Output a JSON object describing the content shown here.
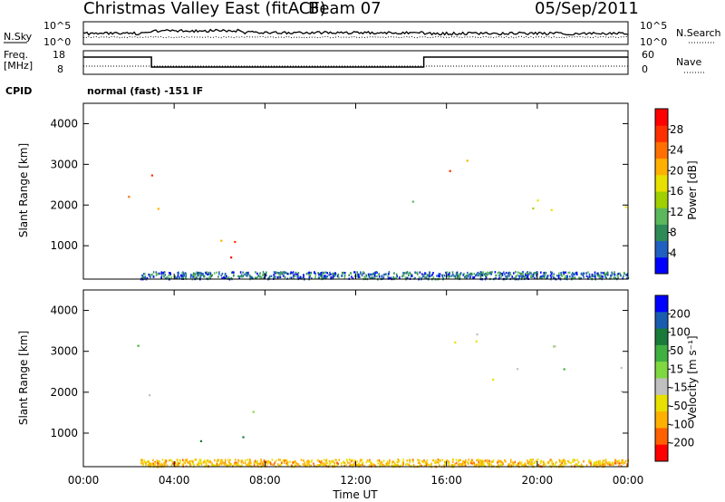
{
  "header": {
    "station": "Christmas Valley East (fitACF)",
    "beam": "Beam 07",
    "date": "05/Sep/2011"
  },
  "sky_panel": {
    "left_label": "N.Sky",
    "left_ticks": [
      "10^5",
      "10^0"
    ],
    "right_label": "N.Search",
    "right_ticks": [
      "10^5",
      "10^0"
    ]
  },
  "freq_panel": {
    "left_label_line1": "Freq.",
    "left_label_line2": "[MHz]",
    "left_ticks": [
      "18",
      "8"
    ],
    "right_label": "Nave",
    "right_ticks": [
      "60",
      "0"
    ]
  },
  "cpid": {
    "label": "CPID",
    "value": "normal (fast) -151 IF"
  },
  "colors": {
    "power": [
      "#0000ff",
      "#2060c0",
      "#2e8b57",
      "#5cb85c",
      "#a0d000",
      "#e8e000",
      "#ffb000",
      "#ff7000",
      "#ff3000",
      "#ff0000"
    ],
    "velocity": [
      "#0000ff",
      "#1a5cb0",
      "#1a7a3a",
      "#40b040",
      "#80d840",
      "#c0c0c0",
      "#e8e000",
      "#ffb000",
      "#ff6000",
      "#ff0000"
    ]
  },
  "chart_data": [
    {
      "type": "heatmap",
      "ylabel": "Slant Range [km]",
      "ylim": [
        180,
        4500
      ],
      "yticks": [
        "1000",
        "2000",
        "3000",
        "4000"
      ],
      "colorbar_label": "Power [dB]",
      "colorbar_ticks": [
        "4",
        "8",
        "12",
        "16",
        "20",
        "24",
        "28"
      ],
      "scatter_blobs": [
        {
          "t0": 0.0,
          "t1": 3.0,
          "r0": 1800,
          "r1": 3200,
          "level": 0.75
        },
        {
          "t0": 2.9,
          "t1": 5.0,
          "r0": 1400,
          "r1": 2000,
          "level": 0.6
        },
        {
          "t0": 2.5,
          "t1": 7.5,
          "r0": 600,
          "r1": 1300,
          "level": 0.9
        },
        {
          "t0": 5.5,
          "t1": 7.8,
          "r0": 1000,
          "r1": 1700,
          "level": 0.5
        },
        {
          "t0": 11.0,
          "t1": 15.0,
          "r0": 1600,
          "r1": 2200,
          "level": 0.45
        },
        {
          "t0": 15.0,
          "t1": 19.0,
          "r0": 2600,
          "r1": 3300,
          "level": 0.7
        },
        {
          "t0": 16.5,
          "t1": 20.5,
          "r0": 1800,
          "r1": 2600,
          "level": 0.6
        },
        {
          "t0": 19.0,
          "t1": 24.0,
          "r0": 1600,
          "r1": 2400,
          "level": 0.5
        },
        {
          "t0": 20.5,
          "t1": 21.8,
          "r0": 700,
          "r1": 1200,
          "level": 0.55
        }
      ]
    },
    {
      "type": "heatmap",
      "ylabel": "Slant Range [km]",
      "ylim": [
        180,
        4500
      ],
      "yticks": [
        "1000",
        "2000",
        "3000",
        "4000"
      ],
      "xlabel": "Time UT",
      "xticks": [
        "00:00",
        "04:00",
        "08:00",
        "12:00",
        "16:00",
        "20:00",
        "00:00"
      ],
      "xlim": [
        0,
        24
      ],
      "colorbar_label": "Velocity [m s⁻¹]",
      "colorbar_ticks": [
        "200",
        "100",
        "50",
        "15",
        "-15",
        "-50",
        "-100",
        "-200"
      ],
      "scatter_blobs": [
        {
          "t0": 0.0,
          "t1": 3.0,
          "r0": 1800,
          "r1": 3200,
          "level": 0.5
        },
        {
          "t0": 2.7,
          "t1": 7.5,
          "r0": 650,
          "r1": 1700,
          "level": 0.35
        },
        {
          "t0": 2.8,
          "t1": 3.1,
          "r0": 2000,
          "r1": 2500,
          "level": 0.3
        },
        {
          "t0": 15.0,
          "t1": 24.0,
          "r0": 1600,
          "r1": 3500,
          "level": 0.5
        },
        {
          "t0": 18.5,
          "t1": 20.0,
          "r0": 3600,
          "r1": 4100,
          "level": 0.02
        },
        {
          "t0": 6.0,
          "t1": 18.0,
          "r0": 200,
          "r1": 450,
          "level": 0.7
        }
      ]
    }
  ]
}
